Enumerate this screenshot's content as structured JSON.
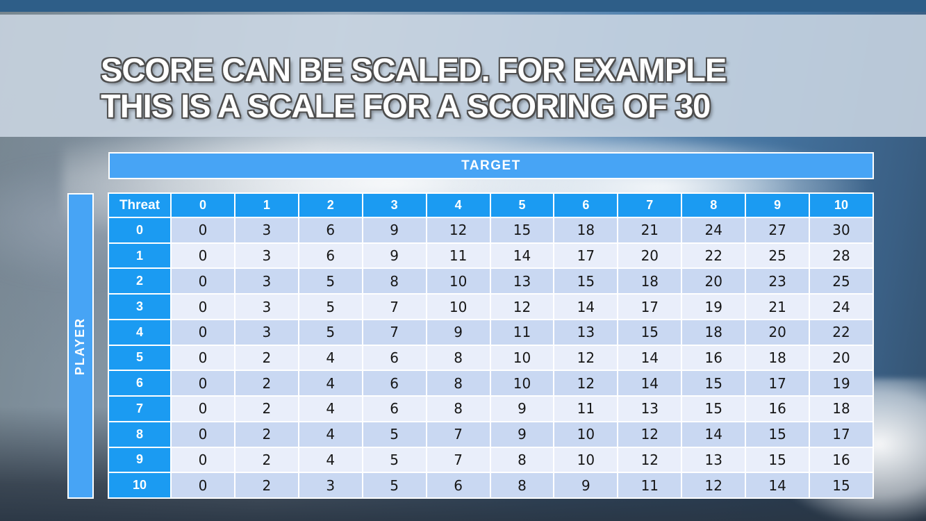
{
  "title": {
    "line1": "SCORE CAN BE SCALED. FOR EXAMPLE",
    "line2": "THIS IS A SCALE FOR A SCORING OF 30"
  },
  "matrix": {
    "target_label": "TARGET",
    "player_label": "PLAYER",
    "corner_label": "Threat",
    "col_headers": [
      "0",
      "1",
      "2",
      "3",
      "4",
      "5",
      "6",
      "7",
      "8",
      "9",
      "10"
    ],
    "row_headers": [
      "0",
      "1",
      "2",
      "3",
      "4",
      "5",
      "6",
      "7",
      "8",
      "9",
      "10"
    ],
    "rows": [
      [
        0,
        3,
        6,
        9,
        12,
        15,
        18,
        21,
        24,
        27,
        30
      ],
      [
        0,
        3,
        6,
        9,
        11,
        14,
        17,
        20,
        22,
        25,
        28
      ],
      [
        0,
        3,
        5,
        8,
        10,
        13,
        15,
        18,
        20,
        23,
        25
      ],
      [
        0,
        3,
        5,
        7,
        10,
        12,
        14,
        17,
        19,
        21,
        24
      ],
      [
        0,
        3,
        5,
        7,
        9,
        11,
        13,
        15,
        18,
        20,
        22
      ],
      [
        0,
        2,
        4,
        6,
        8,
        10,
        12,
        14,
        16,
        18,
        20
      ],
      [
        0,
        2,
        4,
        6,
        8,
        10,
        12,
        14,
        15,
        17,
        19
      ],
      [
        0,
        2,
        4,
        6,
        8,
        9,
        11,
        13,
        15,
        16,
        18
      ],
      [
        0,
        2,
        4,
        5,
        7,
        9,
        10,
        12,
        14,
        15,
        17
      ],
      [
        0,
        2,
        4,
        5,
        7,
        8,
        10,
        12,
        13,
        15,
        16
      ],
      [
        0,
        2,
        3,
        5,
        6,
        8,
        9,
        11,
        12,
        14,
        15
      ]
    ]
  },
  "colors": {
    "header_blue": "#1b9bf2",
    "bar_blue": "#47a4f5",
    "row_even": "#c9d8f2",
    "row_odd": "#e9eefa",
    "top_strip": "#2e5e88",
    "cell_text": "#161616"
  }
}
